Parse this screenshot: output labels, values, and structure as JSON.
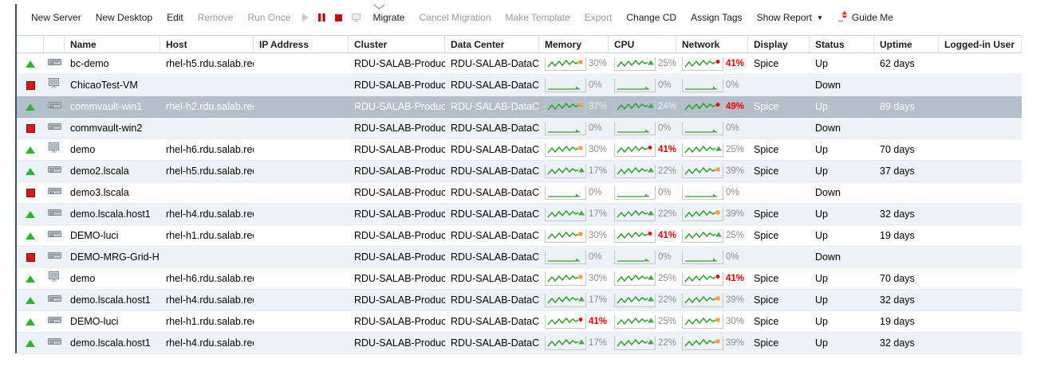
{
  "toolbar": {
    "items": [
      {
        "kind": "button",
        "name": "new-server-button",
        "label": "New Server",
        "enabled": true
      },
      {
        "kind": "button",
        "name": "new-desktop-button",
        "label": "New Desktop",
        "enabled": true
      },
      {
        "kind": "button",
        "name": "edit-button",
        "label": "Edit",
        "enabled": true
      },
      {
        "kind": "button",
        "name": "remove-button",
        "label": "Remove",
        "enabled": false
      },
      {
        "kind": "button",
        "name": "run-once-button",
        "label": "Run Once",
        "enabled": false
      },
      {
        "kind": "icon",
        "name": "play-icon",
        "enabled": false
      },
      {
        "kind": "icon",
        "name": "pause-icon",
        "enabled": true
      },
      {
        "kind": "icon",
        "name": "stop-icon",
        "enabled": true
      },
      {
        "kind": "icon",
        "name": "console-icon",
        "enabled": false
      },
      {
        "kind": "button",
        "name": "migrate-button",
        "label": "Migrate",
        "enabled": true
      },
      {
        "kind": "button",
        "name": "cancel-migration-button",
        "label": "Cancel Migration",
        "enabled": false
      },
      {
        "kind": "button",
        "name": "make-template-button",
        "label": "Make Template",
        "enabled": false
      },
      {
        "kind": "button",
        "name": "export-button",
        "label": "Export",
        "enabled": false
      },
      {
        "kind": "button",
        "name": "change-cd-button",
        "label": "Change CD",
        "enabled": true
      },
      {
        "kind": "button",
        "name": "assign-tags-button",
        "label": "Assign Tags",
        "enabled": true
      },
      {
        "kind": "button",
        "name": "show-report-button",
        "label": "Show Report",
        "enabled": true,
        "dropdown": true
      },
      {
        "kind": "guide",
        "name": "guide-me-button",
        "label": "Guide Me",
        "enabled": true
      }
    ]
  },
  "table": {
    "columns": [
      "",
      "",
      "Name",
      "Host",
      "IP Address",
      "Cluster",
      "Data Center",
      "Memory",
      "CPU",
      "Network",
      "Display",
      "Status",
      "Uptime",
      "Logged-in User"
    ],
    "rows": [
      {
        "state": "up",
        "type": "server",
        "name": "bc-demo",
        "host": "rhel-h5.rdu.salab.red",
        "ip": "",
        "cluster": "RDU-SALAB-Produc",
        "data_center": "RDU-SALAB-DataC",
        "memory": 30,
        "cpu": 25,
        "network": 41,
        "display": "Spice",
        "status": "Up",
        "uptime": "62 days",
        "user": "",
        "selected": false
      },
      {
        "state": "down",
        "type": "desktop",
        "name": "ChicaoTest-VM",
        "host": "",
        "ip": "",
        "cluster": "RDU-SALAB-Produc",
        "data_center": "RDU-SALAB-DataC",
        "memory": 0,
        "cpu": 0,
        "network": 0,
        "display": "",
        "status": "Down",
        "uptime": "",
        "user": "",
        "selected": false
      },
      {
        "state": "up",
        "type": "server",
        "name": "commvault-win1",
        "host": "rhel-h2.rdu.salab.red",
        "ip": "",
        "cluster": "RDU-SALAB-Produc",
        "data_center": "RDU-SALAB-DataC",
        "memory": 37,
        "cpu": 24,
        "network": 49,
        "display": "Spice",
        "status": "Up",
        "uptime": "89 days",
        "user": "",
        "selected": true
      },
      {
        "state": "down",
        "type": "server",
        "name": "commvault-win2",
        "host": "",
        "ip": "",
        "cluster": "RDU-SALAB-Produc",
        "data_center": "RDU-SALAB-DataC",
        "memory": 0,
        "cpu": 0,
        "network": 0,
        "display": "",
        "status": "Down",
        "uptime": "",
        "user": "",
        "selected": false
      },
      {
        "state": "up",
        "type": "desktop",
        "name": "demo",
        "host": "rhel-h6.rdu.salab.red",
        "ip": "",
        "cluster": "RDU-SALAB-Produc",
        "data_center": "RDU-SALAB-DataC",
        "memory": 30,
        "cpu": 41,
        "network": 25,
        "display": "Spice",
        "status": "Up",
        "uptime": "70 days",
        "user": "",
        "selected": false
      },
      {
        "state": "up",
        "type": "server",
        "name": "demo2.lscala",
        "host": "rhel-h5.rdu.salab.red",
        "ip": "",
        "cluster": "RDU-SALAB-Produc",
        "data_center": "RDU-SALAB-DataC",
        "memory": 17,
        "cpu": 22,
        "network": 39,
        "display": "Spice",
        "status": "Up",
        "uptime": "37 days",
        "user": "",
        "selected": false
      },
      {
        "state": "down",
        "type": "server",
        "name": "demo3.lscala",
        "host": "",
        "ip": "",
        "cluster": "RDU-SALAB-Produc",
        "data_center": "RDU-SALAB-DataC",
        "memory": 0,
        "cpu": 0,
        "network": 0,
        "display": "",
        "status": "Down",
        "uptime": "",
        "user": "",
        "selected": false
      },
      {
        "state": "up",
        "type": "server",
        "name": "demo.lscala.host1",
        "host": "rhel-h4.rdu.salab.red",
        "ip": "",
        "cluster": "RDU-SALAB-Produc",
        "data_center": "RDU-SALAB-DataC",
        "memory": 17,
        "cpu": 22,
        "network": 39,
        "display": "Spice",
        "status": "Up",
        "uptime": "32 days",
        "user": "",
        "selected": false
      },
      {
        "state": "up",
        "type": "server",
        "name": "DEMO-luci",
        "host": "rhel-h1.rdu.salab.red",
        "ip": "",
        "cluster": "RDU-SALAB-Produc",
        "data_center": "RDU-SALAB-DataC",
        "memory": 30,
        "cpu": 41,
        "network": 25,
        "display": "Spice",
        "status": "Up",
        "uptime": "19 days",
        "user": "",
        "selected": false
      },
      {
        "state": "down",
        "type": "server",
        "name": "DEMO-MRG-Grid-H",
        "host": "",
        "ip": "",
        "cluster": "RDU-SALAB-Produc",
        "data_center": "RDU-SALAB-DataC",
        "memory": 0,
        "cpu": 0,
        "network": 0,
        "display": "",
        "status": "Down",
        "uptime": "",
        "user": "",
        "selected": false
      },
      {
        "state": "up",
        "type": "desktop",
        "name": "demo",
        "host": "rhel-h6.rdu.salab.red",
        "ip": "",
        "cluster": "RDU-SALAB-Produc",
        "data_center": "RDU-SALAB-DataC",
        "memory": 30,
        "cpu": 25,
        "network": 41,
        "display": "Spice",
        "status": "Up",
        "uptime": "70 days",
        "user": "",
        "selected": false
      },
      {
        "state": "up",
        "type": "server",
        "name": "demo.lscala.host1",
        "host": "rhel-h4.rdu.salab.red",
        "ip": "",
        "cluster": "RDU-SALAB-Produc",
        "data_center": "RDU-SALAB-DataC",
        "memory": 17,
        "cpu": 22,
        "network": 39,
        "display": "Spice",
        "status": "Up",
        "uptime": "32 days",
        "user": "",
        "selected": false
      },
      {
        "state": "up",
        "type": "server",
        "name": "DEMO-luci",
        "host": "rhel-h1.rdu.salab.red",
        "ip": "",
        "cluster": "RDU-SALAB-Produc",
        "data_center": "RDU-SALAB-DataC",
        "memory": 41,
        "cpu": 25,
        "network": 30,
        "display": "Spice",
        "status": "Up",
        "uptime": "19 days",
        "user": "",
        "selected": false
      },
      {
        "state": "up",
        "type": "server",
        "name": "demo.lscala.host1",
        "host": "rhel-h4.rdu.salab.red",
        "ip": "",
        "cluster": "RDU-SALAB-Produc",
        "data_center": "RDU-SALAB-DataC",
        "memory": 17,
        "cpu": 22,
        "network": 39,
        "display": "Spice",
        "status": "Up",
        "uptime": "32 days",
        "user": "",
        "selected": false
      }
    ]
  },
  "colors": {
    "selected_row_bg": "#b3c0cb",
    "alt_row_bg": "#edf2f8",
    "up_green": "#2fb32f",
    "down_red": "#cf1d1d",
    "spark_green": "#2f9e2f",
    "warn_orange": "#f2a33c",
    "high_red": "#e60000",
    "disabled_text": "#9b9b9b"
  }
}
